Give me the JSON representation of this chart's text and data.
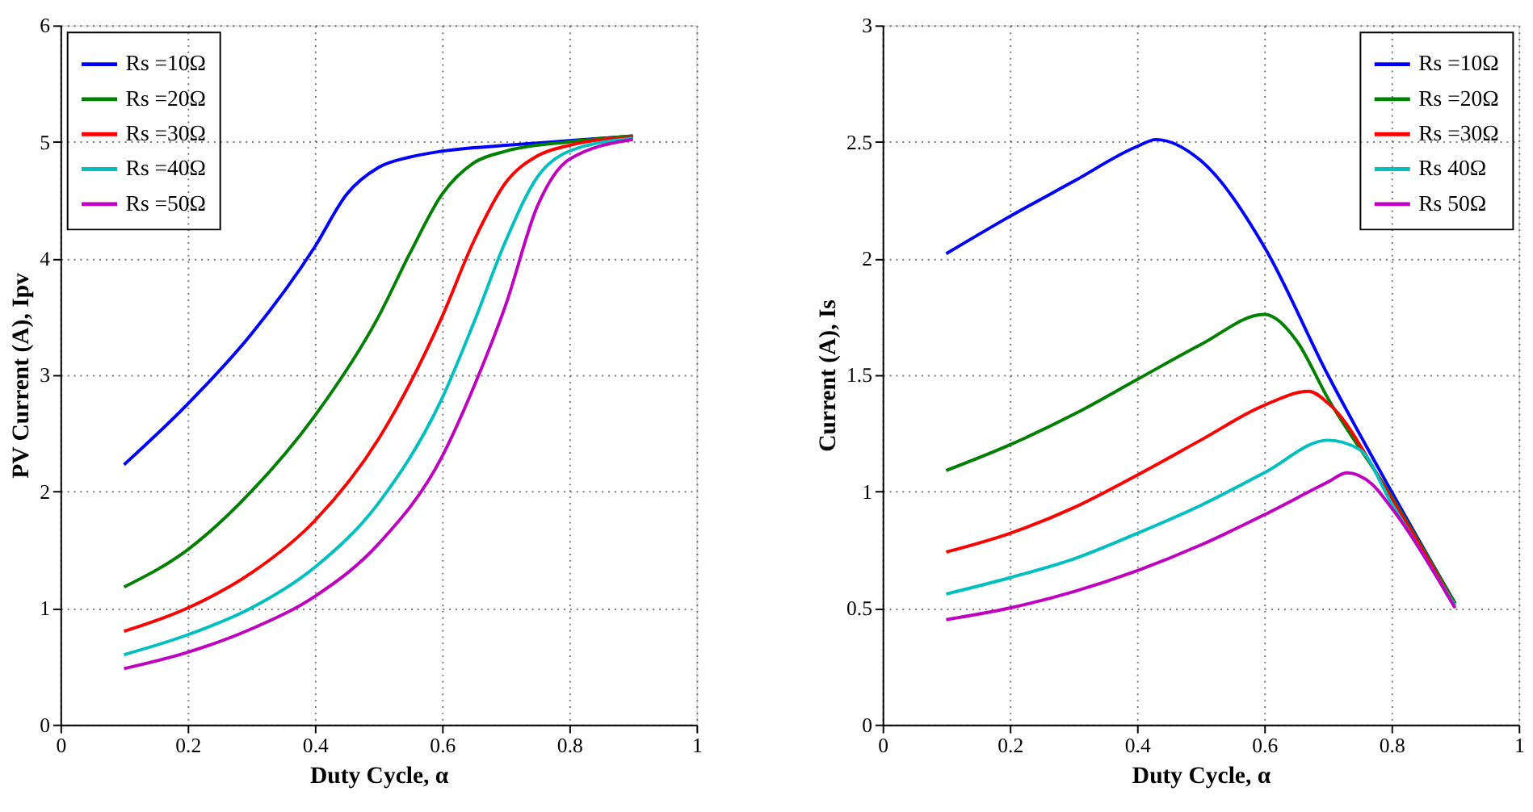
{
  "chart_data": [
    {
      "type": "line",
      "xlabel": "Duty Cycle, α",
      "ylabel": "PV Current (A), Ipv",
      "xlim": [
        0,
        1
      ],
      "ylim": [
        0,
        6
      ],
      "xticks": [
        0,
        0.2,
        0.4,
        0.6,
        0.8,
        1
      ],
      "yticks": [
        0,
        1,
        2,
        3,
        4,
        5,
        6
      ],
      "grid": true,
      "legend": "top left",
      "line_style": "solid",
      "marker": "none",
      "series": [
        {
          "name": "Rs =10Ω",
          "color": "#0000ff",
          "x": [
            0.1,
            0.2,
            0.3,
            0.4,
            0.45,
            0.5,
            0.55,
            0.6,
            0.7,
            0.8,
            0.9
          ],
          "values": [
            2.23,
            2.75,
            3.35,
            4.1,
            4.55,
            4.78,
            4.87,
            4.92,
            4.97,
            5.01,
            5.05
          ]
        },
        {
          "name": "Rs =20Ω",
          "color": "#008000",
          "x": [
            0.1,
            0.2,
            0.3,
            0.4,
            0.5,
            0.55,
            0.6,
            0.65,
            0.7,
            0.8,
            0.9
          ],
          "values": [
            1.18,
            1.5,
            2.0,
            2.65,
            3.5,
            4.05,
            4.55,
            4.82,
            4.92,
            5.0,
            5.05
          ]
        },
        {
          "name": "Rs =30Ω",
          "color": "#ff0000",
          "x": [
            0.1,
            0.2,
            0.3,
            0.4,
            0.5,
            0.6,
            0.65,
            0.7,
            0.75,
            0.8,
            0.9
          ],
          "values": [
            0.8,
            1.0,
            1.3,
            1.75,
            2.45,
            3.5,
            4.15,
            4.65,
            4.88,
            4.97,
            5.04
          ]
        },
        {
          "name": "Rs =40Ω",
          "color": "#00bfbf",
          "x": [
            0.1,
            0.2,
            0.3,
            0.4,
            0.5,
            0.6,
            0.65,
            0.7,
            0.75,
            0.8,
            0.9
          ],
          "values": [
            0.6,
            0.77,
            1.0,
            1.35,
            1.9,
            2.8,
            3.45,
            4.15,
            4.7,
            4.92,
            5.03
          ]
        },
        {
          "name": "Rs =50Ω",
          "color": "#bf00bf",
          "x": [
            0.1,
            0.2,
            0.3,
            0.4,
            0.5,
            0.6,
            0.65,
            0.7,
            0.75,
            0.8,
            0.9
          ],
          "values": [
            0.48,
            0.62,
            0.82,
            1.1,
            1.55,
            2.3,
            2.9,
            3.6,
            4.45,
            4.85,
            5.02
          ]
        }
      ]
    },
    {
      "type": "line",
      "xlabel": "Duty Cycle, α",
      "ylabel": "Current (A), Is",
      "xlim": [
        0,
        1
      ],
      "ylim": [
        0,
        3
      ],
      "xticks": [
        0,
        0.2,
        0.4,
        0.6,
        0.8,
        1
      ],
      "yticks": [
        0,
        0.5,
        1,
        1.5,
        2,
        2.5,
        3
      ],
      "grid": true,
      "legend": "top right",
      "line_style": "solid",
      "marker": "none",
      "series": [
        {
          "name": "Rs =10Ω",
          "color": "#0000ff",
          "x": [
            0.1,
            0.2,
            0.3,
            0.4,
            0.43,
            0.5,
            0.6,
            0.7,
            0.8,
            0.9
          ],
          "values": [
            2.02,
            2.18,
            2.33,
            2.48,
            2.51,
            2.42,
            2.05,
            1.5,
            1.0,
            0.52
          ]
        },
        {
          "name": "Rs =20Ω",
          "color": "#008000",
          "x": [
            0.1,
            0.2,
            0.3,
            0.4,
            0.5,
            0.6,
            0.65,
            0.7,
            0.8,
            0.9
          ],
          "values": [
            1.09,
            1.2,
            1.33,
            1.48,
            1.63,
            1.76,
            1.65,
            1.4,
            0.98,
            0.52
          ]
        },
        {
          "name": "Rs =30Ω",
          "color": "#ff0000",
          "x": [
            0.1,
            0.2,
            0.3,
            0.4,
            0.5,
            0.6,
            0.67,
            0.7,
            0.8,
            0.9
          ],
          "values": [
            0.74,
            0.82,
            0.93,
            1.07,
            1.22,
            1.37,
            1.43,
            1.38,
            0.97,
            0.51
          ]
        },
        {
          "name": "Rs  40Ω",
          "color": "#00bfbf",
          "x": [
            0.1,
            0.2,
            0.3,
            0.4,
            0.5,
            0.6,
            0.7,
            0.75,
            0.8,
            0.9
          ],
          "values": [
            0.56,
            0.63,
            0.71,
            0.82,
            0.94,
            1.08,
            1.22,
            1.18,
            0.95,
            0.51
          ]
        },
        {
          "name": "Rs  50Ω",
          "color": "#bf00bf",
          "x": [
            0.1,
            0.2,
            0.3,
            0.4,
            0.5,
            0.6,
            0.7,
            0.73,
            0.77,
            0.8,
            0.9
          ],
          "values": [
            0.45,
            0.5,
            0.57,
            0.66,
            0.77,
            0.9,
            1.04,
            1.08,
            1.03,
            0.93,
            0.5
          ]
        }
      ]
    }
  ]
}
